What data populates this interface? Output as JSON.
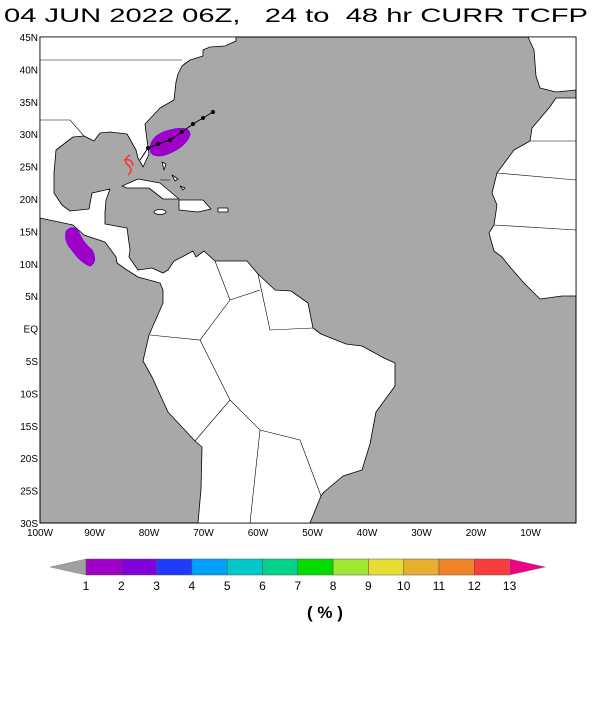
{
  "title": "04 JUN 2022 06Z,   24 to  48 hr CURR TCFP",
  "map": {
    "lat_labels": [
      "45N",
      "40N",
      "35N",
      "30N",
      "25N",
      "20N",
      "15N",
      "10N",
      "5N",
      "EQ",
      "5S",
      "10S",
      "15S",
      "20S",
      "25S",
      "30S"
    ],
    "lon_labels": [
      "100W",
      "90W",
      "80W",
      "70W",
      "60W",
      "50W",
      "40W",
      "30W",
      "20W",
      "10W"
    ]
  },
  "colorbar": {
    "labels": [
      1,
      2,
      3,
      4,
      5,
      6,
      7,
      8,
      9,
      10,
      11,
      12,
      13
    ],
    "under_color": "#a0a0a0",
    "colors": [
      "#a000c8",
      "#8200dc",
      "#1e3cff",
      "#00a0ff",
      "#00c8c8",
      "#00d28c",
      "#00dc00",
      "#a0e632",
      "#e6dc32",
      "#e6af2d",
      "#f08228",
      "#fa3c3c"
    ],
    "over_color": "#f00082"
  },
  "units": "( % )"
}
